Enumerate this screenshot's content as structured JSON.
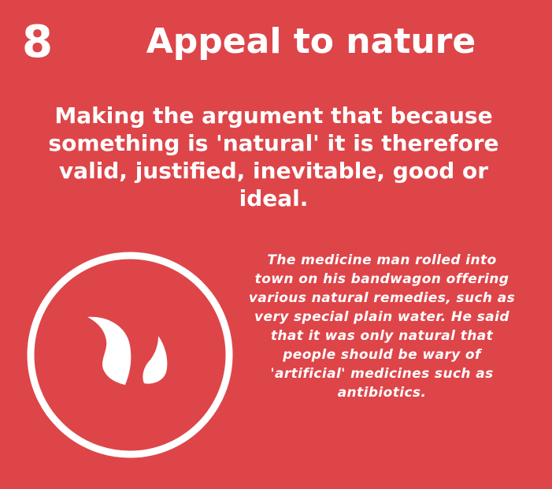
{
  "card": {
    "number": "8",
    "title": "Appeal to nature",
    "definition": "Making the argument that because something is 'natural' it is therefore valid, justified, inevitable, good or ideal.",
    "example": "The medicine man rolled into town on his bandwagon offering various natural remedies, such as very special plain water. He said that it was only natural that people should be wary of 'artificial' medicines such as antibiotics."
  },
  "icon": {
    "name": "leaf-icon",
    "enclosure": "circle-outline"
  },
  "colors": {
    "background": "#dd4549",
    "foreground": "#ffffff"
  }
}
